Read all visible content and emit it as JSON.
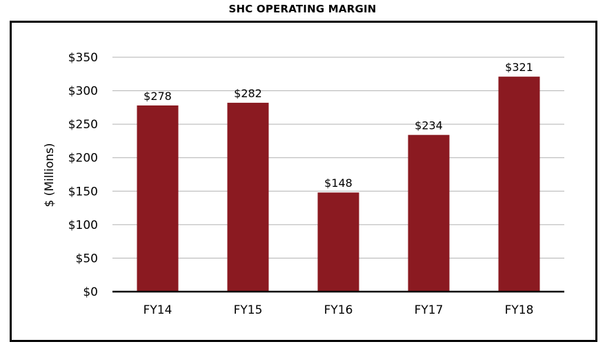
{
  "chart_data": {
    "type": "bar",
    "title": "SHC OPERATING MARGIN",
    "xlabel": "",
    "ylabel": "$ (Millions)",
    "categories": [
      "FY14",
      "FY15",
      "FY16",
      "FY17",
      "FY18"
    ],
    "values": [
      278,
      282,
      148,
      234,
      321
    ],
    "data_labels": [
      "$278",
      "$282",
      "$148",
      "$234",
      "$321"
    ],
    "ylim": [
      0,
      350
    ],
    "yticks": [
      0,
      50,
      100,
      150,
      200,
      250,
      300,
      350
    ],
    "ytick_labels": [
      "$0",
      "$50",
      "$100",
      "$150",
      "$200",
      "$250",
      "$300",
      "$350"
    ],
    "grid": true,
    "legend": "none",
    "bar_color": "#8b1a21",
    "grid_color": "#b0b0b0"
  }
}
